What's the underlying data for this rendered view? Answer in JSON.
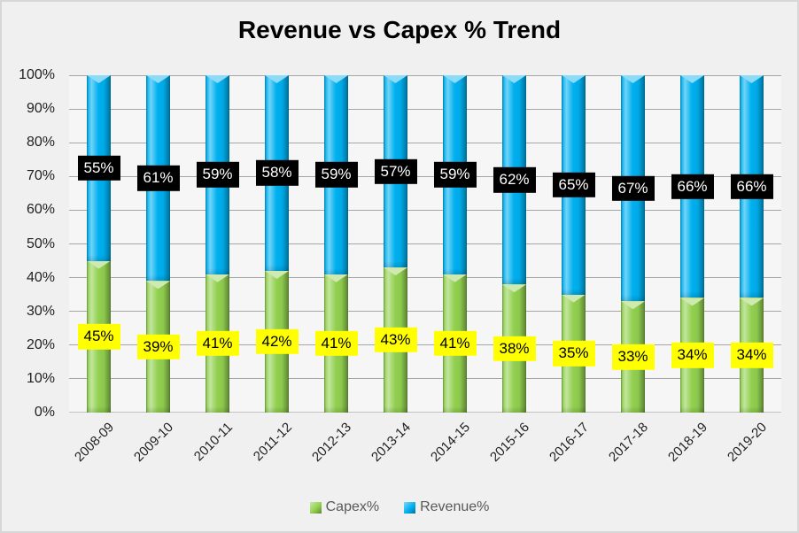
{
  "title": "Revenue vs Capex % Trend",
  "y_axis": {
    "ticks": [
      "100%",
      "90%",
      "80%",
      "70%",
      "60%",
      "50%",
      "40%",
      "30%",
      "20%",
      "10%",
      "0%"
    ]
  },
  "legend": {
    "items": [
      {
        "label": "Capex%",
        "color": "#92D050"
      },
      {
        "label": "Revenue%",
        "color": "#00B0F0"
      }
    ]
  },
  "colors": {
    "background": "#F0F0F0",
    "plot_background": "#F6F6F6",
    "gridline": "#A6A6A6",
    "capex_green": "#92D050",
    "revenue_blue": "#00B0F0",
    "capex_label_bg": "#FFFF00",
    "capex_label_text": "#000000",
    "revenue_label_bg": "#000000",
    "revenue_label_text": "#FFFFFF"
  },
  "chart_data": {
    "type": "bar",
    "stacked": true,
    "percent_stacked": true,
    "title": "Revenue vs Capex % Trend",
    "categories": [
      "2008-09",
      "2009-10",
      "2010-11",
      "2011-12",
      "2012-13",
      "2013-14",
      "2014-15",
      "2015-16",
      "2016-17",
      "2017-18",
      "2018-19",
      "2019-20"
    ],
    "series": [
      {
        "name": "Capex%",
        "color": "#92D050",
        "label_bg": "#FFFF00",
        "label_color": "#000000",
        "values": [
          45,
          39,
          41,
          42,
          41,
          43,
          41,
          38,
          35,
          33,
          34,
          34
        ]
      },
      {
        "name": "Revenue%",
        "color": "#00B0F0",
        "label_bg": "#000000",
        "label_color": "#FFFFFF",
        "values": [
          55,
          61,
          59,
          58,
          59,
          57,
          59,
          62,
          65,
          67,
          66,
          66
        ]
      }
    ],
    "xlabel": "",
    "ylabel": "",
    "ylim": [
      0,
      100
    ],
    "ytick_step": 10,
    "grid": true,
    "x_label_rotation": 45,
    "legend_position": "bottom",
    "data_labels": "segment midpoints, value + %"
  }
}
